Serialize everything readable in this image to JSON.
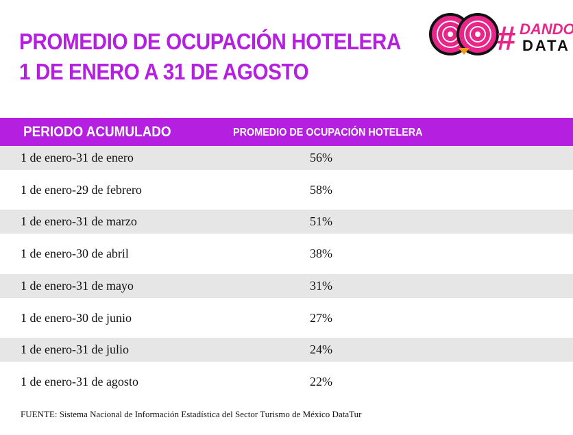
{
  "header": {
    "title": [
      "PROMEDIO DE OCUPACIÓN HOTELERA",
      "1 DE ENERO A 31 DE AGOSTO"
    ]
  },
  "logo": {
    "hashtag": "#",
    "line1": "DANDO",
    "line2": "DATA"
  },
  "table": {
    "columns": [
      "PERIODO ACUMULADO",
      "PROMEDIO DE OCUPACIÓN HOTELERA"
    ],
    "rows": [
      [
        "1 de enero-31 de enero",
        "56%"
      ],
      [
        "1 de enero-29 de febrero",
        "58%"
      ],
      [
        "1 de enero-31 de marzo",
        "51%"
      ],
      [
        "1 de enero-30 de abril",
        "38%"
      ],
      [
        "1 de enero-31 de mayo",
        "31%"
      ],
      [
        "1 de enero-30 de junio",
        "27%"
      ],
      [
        "1 de enero-31 de julio",
        "24%"
      ],
      [
        "1 de enero-31 de agosto",
        "22%"
      ]
    ]
  },
  "footer": {
    "source": "FUENTE: Sistema Nacional de Información Estadística del Sector Turismo de México DataTur"
  }
}
